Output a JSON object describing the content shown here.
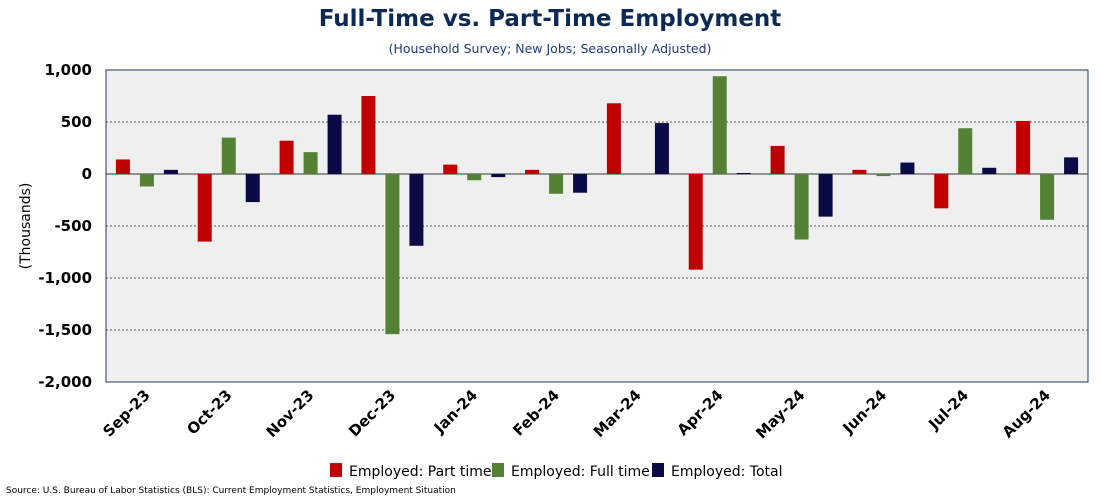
{
  "title": "Full-Time vs. Part-Time Employment",
  "subtitle": "(Household Survey; New Jobs; Seasonally Adjusted)",
  "source": "Source: U.S. Bureau of Labor Statistics (BLS): Current Employment Statistics, Employment Situation",
  "colors": {
    "part_time": "#c00000",
    "full_time": "#548235",
    "total": "#0a0a46",
    "plot_bg": "#efefef",
    "plot_border": "#1f3864"
  },
  "chart_data": {
    "type": "bar",
    "title": "Full-Time vs. Part-Time Employment",
    "subtitle": "(Household Survey; New Jobs; Seasonally Adjusted)",
    "xlabel": "",
    "ylabel": "(Thousands)",
    "ylim": [
      -2000,
      1000
    ],
    "yticks": [
      1000,
      500,
      0,
      -500,
      -1000,
      -1500,
      -2000
    ],
    "ytick_labels": [
      "1,000",
      "500",
      "0",
      "-500",
      "-1,000",
      "-1,500",
      "-2,000"
    ],
    "grid": true,
    "legend_position": "bottom-center",
    "categories": [
      "Sep-23",
      "Oct-23",
      "Nov-23",
      "Dec-23",
      "Jan-24",
      "Feb-24",
      "Mar-24",
      "Apr-24",
      "May-24",
      "Jun-24",
      "Jul-24",
      "Aug-24"
    ],
    "series": [
      {
        "name": "Employed: Part time",
        "values": [
          140,
          -650,
          320,
          750,
          90,
          40,
          680,
          -920,
          270,
          40,
          -330,
          510
        ]
      },
      {
        "name": "Employed: Full time",
        "values": [
          -120,
          350,
          210,
          -1540,
          -60,
          -190,
          0,
          940,
          -630,
          -20,
          440,
          -440
        ]
      },
      {
        "name": "Employed: Total",
        "values": [
          40,
          -270,
          570,
          -690,
          -30,
          -180,
          490,
          10,
          -410,
          110,
          60,
          160
        ]
      }
    ]
  }
}
